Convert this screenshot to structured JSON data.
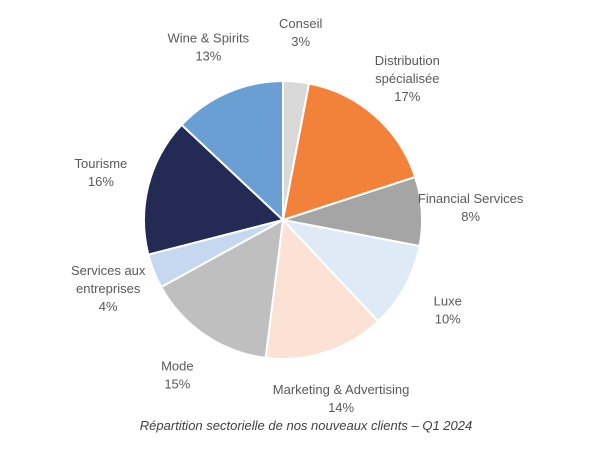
{
  "chart_data": {
    "type": "pie",
    "title": "",
    "caption": "Répartition sectorielle de nos nouveaux clients – Q1 2024",
    "start_angle_deg": 0,
    "direction": "clockwise",
    "slices": [
      {
        "label": [
          "Conseil"
        ],
        "percent_label": "3%",
        "value": 3,
        "color": "#d9d9d9"
      },
      {
        "label": [
          "Distribution",
          "spécialisée"
        ],
        "percent_label": "17%",
        "value": 17,
        "color": "#f2823a"
      },
      {
        "label": [
          "Financial Services"
        ],
        "percent_label": "8%",
        "value": 8,
        "color": "#a5a5a5"
      },
      {
        "label": [
          "Luxe"
        ],
        "percent_label": "10%",
        "value": 10,
        "color": "#deeaf6"
      },
      {
        "label": [
          "Marketing & Advertising"
        ],
        "percent_label": "14%",
        "value": 14,
        "color": "#fbe2d5"
      },
      {
        "label": [
          "Mode"
        ],
        "percent_label": "15%",
        "value": 15,
        "color": "#bfbfbf"
      },
      {
        "label": [
          "Services aux",
          "entreprises"
        ],
        "percent_label": "4%",
        "value": 4,
        "color": "#c5d8f0"
      },
      {
        "label": [
          "Tourisme"
        ],
        "percent_label": "16%",
        "value": 16,
        "color": "#232a54"
      },
      {
        "label": [
          "Wine & Spirits"
        ],
        "percent_label": "13%",
        "value": 13,
        "color": "#6a9fd4"
      }
    ]
  }
}
